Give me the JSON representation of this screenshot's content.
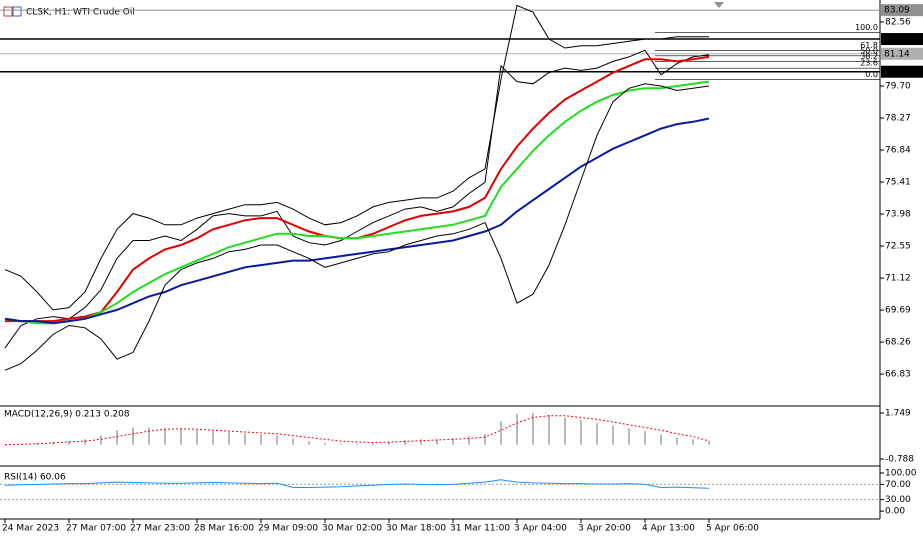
{
  "chart_data": [
    {
      "type": "line",
      "title": "CLSK, H1:  WTI Crude Oil",
      "categories": [
        "24 Mar 2023",
        null,
        null,
        null,
        "27 Mar 07:00",
        null,
        null,
        null,
        "27 Mar 23:00",
        null,
        null,
        null,
        "28 Mar 16:00",
        null,
        null,
        null,
        "29 Mar 09:00",
        null,
        null,
        null,
        "30 Mar 02:00",
        null,
        null,
        null,
        "30 Mar 18:00",
        null,
        null,
        null,
        "31 Mar 11:00",
        null,
        null,
        null,
        "3 Apr 04:00",
        null,
        null,
        null,
        "3 Apr 20:00",
        null,
        null,
        null,
        "4 Apr 13:00",
        null,
        null,
        null,
        "5 Apr 06:00"
      ],
      "series": [
        {
          "color": "#000000",
          "values": [
            68.0,
            69.0,
            69.3,
            69.4,
            69.3,
            69.8,
            70.6,
            72.0,
            72.8,
            72.8,
            73.0,
            72.8,
            73.3,
            73.9,
            74.0,
            73.9,
            73.9,
            74.1,
            73.0,
            72.7,
            72.6,
            72.8,
            73.2,
            73.6,
            73.9,
            74.2,
            74.3,
            74.1,
            74.3,
            74.9,
            75.4,
            80.6,
            79.9,
            79.8,
            80.3,
            80.5,
            80.4,
            80.5,
            80.8,
            81.0,
            81.3,
            80.2,
            80.7,
            81.0,
            81.1
          ]
        },
        {
          "color": "#e00000",
          "values": [
            69.2,
            69.2,
            69.2,
            69.2,
            69.3,
            69.4,
            69.6,
            70.5,
            71.5,
            72.0,
            72.4,
            72.6,
            72.9,
            73.3,
            73.5,
            73.7,
            73.8,
            73.8,
            73.5,
            73.2,
            73.0,
            72.9,
            72.9,
            73.1,
            73.4,
            73.7,
            73.9,
            74.0,
            74.1,
            74.3,
            74.7,
            76.0,
            77.0,
            77.8,
            78.5,
            79.1,
            79.5,
            79.9,
            80.3,
            80.6,
            80.9,
            80.9,
            80.8,
            80.9,
            81.0
          ]
        },
        {
          "color": "#22dd22",
          "values": [
            69.3,
            69.2,
            69.1,
            69.1,
            69.2,
            69.3,
            69.6,
            70.0,
            70.5,
            70.9,
            71.3,
            71.6,
            71.9,
            72.2,
            72.5,
            72.7,
            72.9,
            73.1,
            73.1,
            73.0,
            73.0,
            72.9,
            72.9,
            73.0,
            73.1,
            73.2,
            73.3,
            73.4,
            73.5,
            73.7,
            73.9,
            75.2,
            76.0,
            76.8,
            77.5,
            78.1,
            78.6,
            79.0,
            79.3,
            79.5,
            79.6,
            79.6,
            79.7,
            79.8,
            79.9
          ]
        },
        {
          "color": "#0a1aa0",
          "values": [
            69.3,
            69.2,
            69.2,
            69.1,
            69.2,
            69.3,
            69.5,
            69.7,
            70.0,
            70.3,
            70.5,
            70.8,
            71.0,
            71.2,
            71.4,
            71.6,
            71.7,
            71.8,
            71.9,
            71.9,
            72.0,
            72.1,
            72.2,
            72.3,
            72.4,
            72.5,
            72.6,
            72.7,
            72.8,
            73.0,
            73.2,
            73.5,
            74.1,
            74.6,
            75.1,
            75.6,
            76.1,
            76.5,
            76.9,
            77.2,
            77.5,
            77.8,
            78.0,
            78.1,
            78.25
          ]
        },
        {
          "color": "#000000",
          "values": [
            71.5,
            71.2,
            70.5,
            69.7,
            69.8,
            70.5,
            72.0,
            73.3,
            74.0,
            73.8,
            73.5,
            73.5,
            73.8,
            74.0,
            74.2,
            74.4,
            74.4,
            74.5,
            74.2,
            73.8,
            73.5,
            73.6,
            73.9,
            74.3,
            74.5,
            74.6,
            74.7,
            74.7,
            75.0,
            75.6,
            76.0,
            80.0,
            83.3,
            83.0,
            81.8,
            81.4,
            81.5,
            81.5,
            81.6,
            81.7,
            81.8,
            81.8,
            81.9,
            81.9,
            81.9
          ]
        },
        {
          "color": "#000000",
          "values": [
            67.0,
            67.3,
            67.9,
            68.6,
            69.0,
            68.9,
            68.4,
            67.5,
            67.8,
            69.2,
            70.8,
            71.5,
            71.8,
            72.0,
            72.3,
            72.4,
            72.6,
            72.6,
            72.3,
            72.0,
            71.6,
            71.8,
            72.0,
            72.2,
            72.3,
            72.6,
            72.8,
            73.0,
            73.1,
            73.3,
            73.6,
            72.0,
            70.0,
            70.4,
            71.7,
            73.5,
            75.5,
            77.5,
            79.0,
            79.6,
            79.8,
            79.7,
            79.5,
            79.6,
            79.7
          ]
        }
      ],
      "ylim": [
        65.45,
        83.32
      ],
      "yticks": [
        82.56,
        {
          "value": 79.7,
          "label": "79.70"
        },
        78.27,
        76.84,
        75.41,
        73.98,
        72.55,
        71.12,
        69.69,
        68.26,
        66.83
      ],
      "hlines": [
        {
          "value": 83.09,
          "color": "#909090"
        },
        {
          "value": 81.8,
          "label": "81.80",
          "color": "#000000"
        },
        {
          "value": 81.14,
          "color": "#b0b0b0"
        },
        {
          "value": 80.34,
          "color": "#000000"
        }
      ],
      "fibo": {
        "range": [
          80.0,
          82.1
        ],
        "color": "#000000",
        "levels": [
          {
            "value": 100,
            "label": "100.0"
          },
          61.8,
          {
            "value": 50,
            "label": "50.0"
          },
          38.2,
          23.6,
          {
            "value": 0,
            "label": "0.0"
          }
        ]
      }
    },
    {
      "type": "bar",
      "title": "MACD(12,26,9) 0.213 0.208",
      "color": "#b8b8b8",
      "values": [
        0.0,
        0.05,
        0.1,
        0.15,
        0.2,
        0.3,
        0.5,
        0.8,
        0.95,
        0.95,
        0.9,
        0.85,
        0.8,
        0.75,
        0.7,
        0.6,
        0.55,
        0.5,
        0.35,
        0.2,
        0.1,
        0.05,
        0.05,
        0.1,
        0.15,
        0.25,
        0.3,
        0.3,
        0.35,
        0.45,
        0.6,
        1.3,
        1.7,
        1.75,
        1.65,
        1.5,
        1.35,
        1.2,
        1.05,
        0.9,
        0.75,
        0.55,
        0.4,
        0.3,
        0.213
      ],
      "signal": {
        "color": "#ff0000",
        "values": [
          0.0,
          0.02,
          0.05,
          0.1,
          0.15,
          0.2,
          0.3,
          0.45,
          0.6,
          0.75,
          0.85,
          0.88,
          0.85,
          0.8,
          0.75,
          0.7,
          0.65,
          0.6,
          0.5,
          0.4,
          0.3,
          0.2,
          0.15,
          0.12,
          0.14,
          0.18,
          0.22,
          0.26,
          0.3,
          0.35,
          0.42,
          0.8,
          1.2,
          1.5,
          1.6,
          1.6,
          1.5,
          1.4,
          1.25,
          1.1,
          0.95,
          0.8,
          0.6,
          0.45,
          0.208
        ]
      },
      "ylim": [
        -1.12,
        2.025
      ],
      "yticks": [
        1.749,
        -0.788
      ]
    },
    {
      "type": "line",
      "title": "RSI(14) 60.06",
      "series": [
        {
          "color": "#1e90ff",
          "values": [
            68,
            69,
            70,
            71,
            72,
            72,
            74,
            76,
            75,
            74,
            73,
            73,
            74,
            75,
            74,
            73,
            72,
            73,
            62,
            62,
            63,
            64,
            66,
            68,
            70,
            71,
            70,
            69,
            70,
            73,
            76,
            82,
            76,
            74,
            73,
            72,
            72,
            71,
            71,
            72,
            70,
            62,
            63,
            61,
            60.06
          ]
        }
      ],
      "ylim": [
        -18,
        113
      ],
      "yticks": [
        {
          "value": 100,
          "label": "100.00"
        },
        {
          "value": 70,
          "label": "70.00"
        },
        {
          "value": 30,
          "label": "30.00"
        },
        {
          "value": 0,
          "label": "0.00"
        }
      ],
      "levels": [
        70,
        30
      ]
    }
  ]
}
